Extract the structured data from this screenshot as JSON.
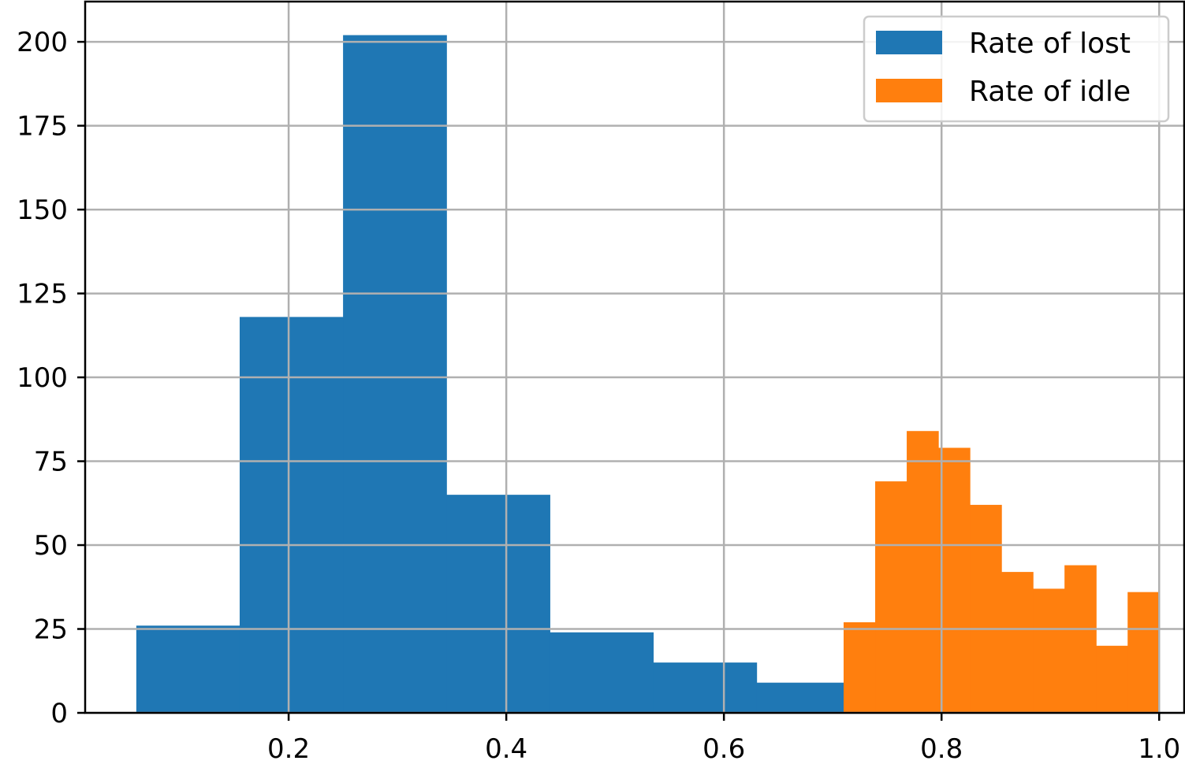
{
  "chart_data": {
    "type": "histogram",
    "title": "",
    "xlabel": "",
    "ylabel": "",
    "xlim": [
      0.013,
      1.023
    ],
    "ylim": [
      0,
      212
    ],
    "xticks": [
      0.2,
      0.4,
      0.6,
      0.8,
      1.0
    ],
    "xtick_labels": [
      "0.2",
      "0.4",
      "0.6",
      "0.8",
      "1.0"
    ],
    "yticks": [
      0,
      25,
      50,
      75,
      100,
      125,
      150,
      175,
      200
    ],
    "ytick_labels": [
      "0",
      "25",
      "50",
      "75",
      "100",
      "125",
      "150",
      "175",
      "200"
    ],
    "grid": true,
    "legend_position": "top-right",
    "series": [
      {
        "name": "Rate of lost",
        "color": "#1f77b4",
        "bin_edges": [
          0.06,
          0.155,
          0.25,
          0.345,
          0.44,
          0.535,
          0.63,
          0.72
        ],
        "counts": [
          26,
          118,
          202,
          65,
          24,
          15,
          9
        ]
      },
      {
        "name": "Rate of idle",
        "color": "#ff7f0e",
        "bin_edges": [
          0.71,
          0.739,
          0.768,
          0.797,
          0.826,
          0.855,
          0.884,
          0.913,
          0.942,
          0.971,
          1.0
        ],
        "counts": [
          27,
          69,
          84,
          79,
          62,
          42,
          37,
          44,
          20,
          36
        ]
      }
    ]
  }
}
